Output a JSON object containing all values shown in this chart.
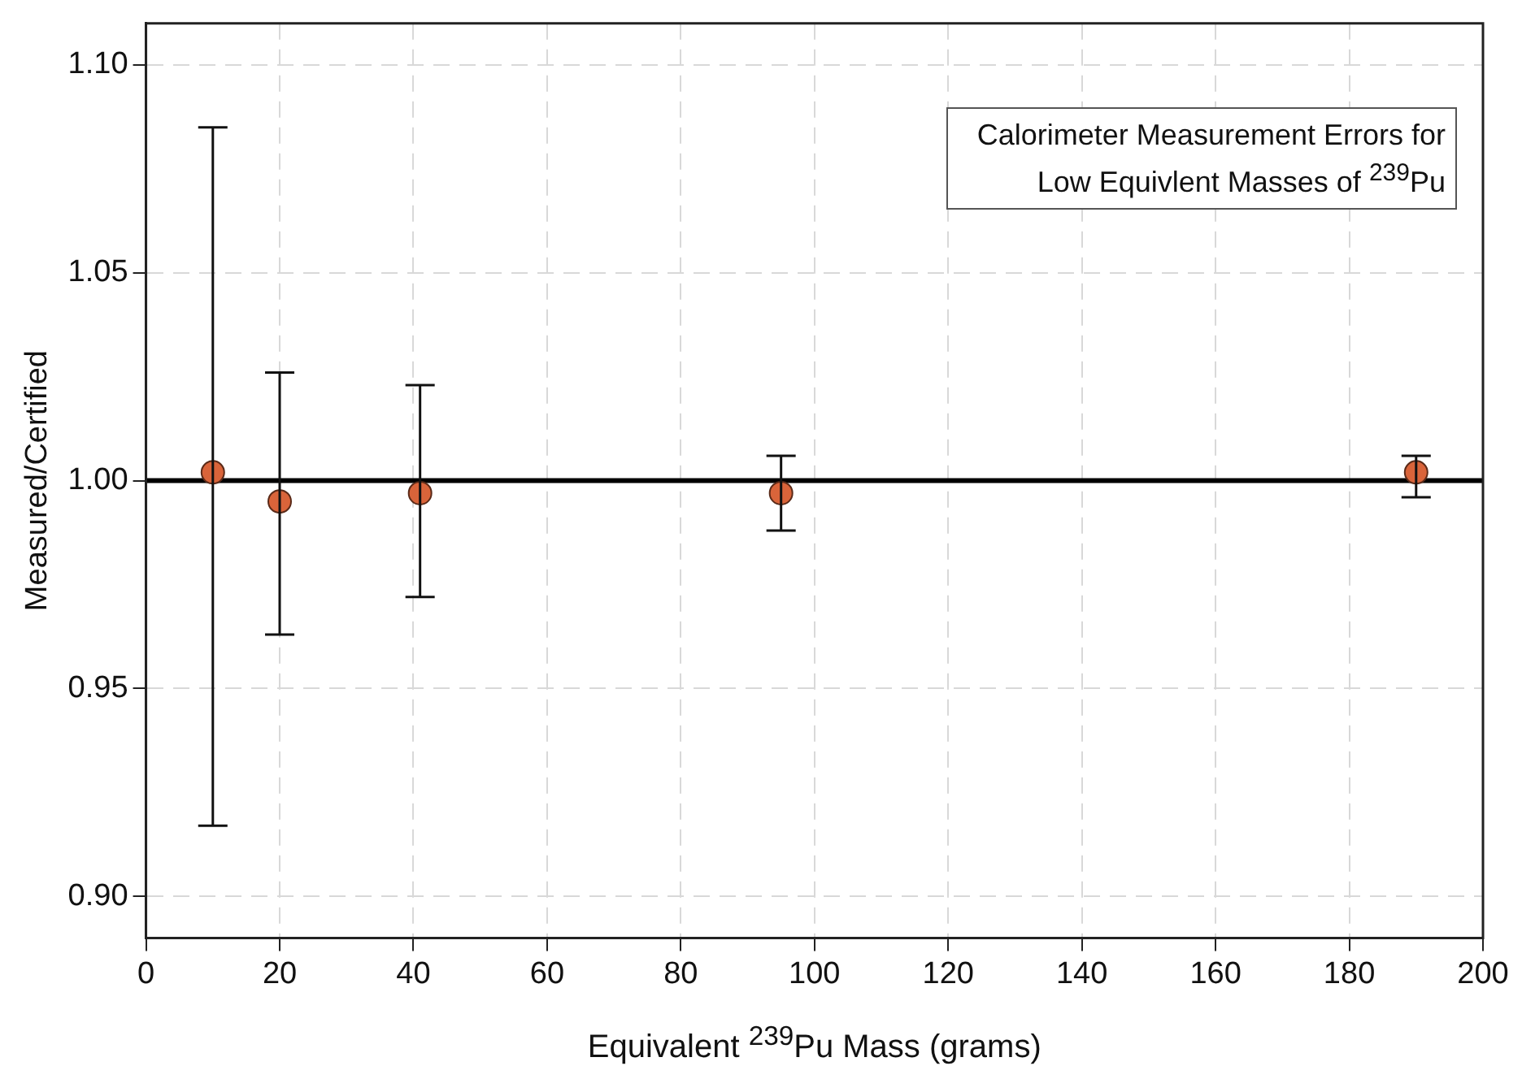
{
  "chart_data": {
    "type": "scatter",
    "xlabel": "Equivalent $^{239}$Pu Mass (grams)",
    "ylabel": "Measured/Certified",
    "annotations": [
      "Calorimeter Measurement Errors for Low Equivlent Masses of $^{239}$Pu"
    ],
    "x": [
      10,
      20,
      41,
      95,
      190
    ],
    "series": [
      {
        "color": "#d9643a",
        "values": [
          1.002,
          0.995,
          0.997,
          0.997,
          1.002
        ],
        "errors": [
          [
            0.917,
            1.085
          ],
          [
            0.963,
            1.026
          ],
          [
            0.972,
            1.023
          ],
          [
            0.988,
            1.006
          ],
          [
            0.996,
            1.006
          ]
        ]
      }
    ],
    "xlim": [
      0,
      200
    ],
    "xticks": [
      0,
      20,
      40,
      60,
      80,
      100,
      120,
      140,
      160,
      180,
      200
    ],
    "ylim": [
      0.89,
      1.11
    ],
    "yticks": [
      {
        "value": 0.9,
        "label": "0.90"
      },
      0.95,
      {
        "value": 1.0,
        "label": "1.00"
      },
      1.05,
      {
        "value": 1.1,
        "label": "1.10"
      }
    ],
    "ref_lines": [
      {
        "axis": "y",
        "value": 1.0,
        "color": "#000000"
      }
    ],
    "grid": true,
    "marker": "circle",
    "legend": false
  }
}
